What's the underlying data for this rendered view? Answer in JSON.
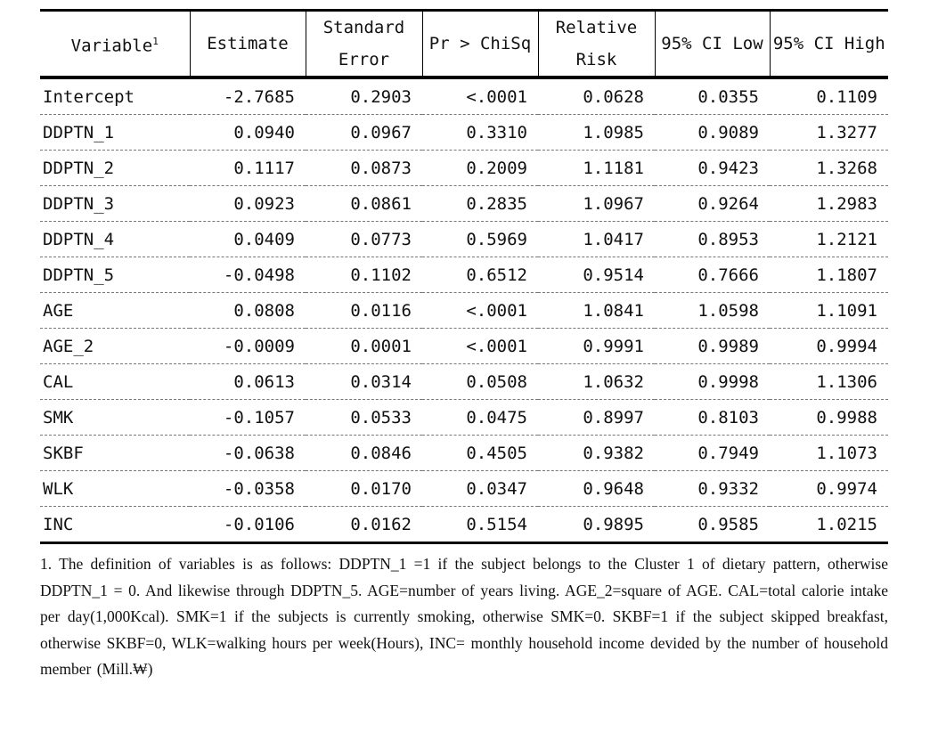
{
  "table": {
    "header": [
      "Variable",
      "Estimate",
      "Standard Error",
      "Pr > ChiSq",
      "Relative Risk",
      "95% CI Low",
      "95% CI High"
    ],
    "header_sup": "1",
    "rows": [
      [
        "Intercept",
        "-2.7685",
        "0.2903",
        "<.0001",
        "0.0628",
        "0.0355",
        "0.1109"
      ],
      [
        "DDPTN_1",
        "0.0940",
        "0.0967",
        "0.3310",
        "1.0985",
        "0.9089",
        "1.3277"
      ],
      [
        "DDPTN_2",
        "0.1117",
        "0.0873",
        "0.2009",
        "1.1181",
        "0.9423",
        "1.3268"
      ],
      [
        "DDPTN_3",
        "0.0923",
        "0.0861",
        "0.2835",
        "1.0967",
        "0.9264",
        "1.2983"
      ],
      [
        "DDPTN_4",
        "0.0409",
        "0.0773",
        "0.5969",
        "1.0417",
        "0.8953",
        "1.2121"
      ],
      [
        "DDPTN_5",
        "-0.0498",
        "0.1102",
        "0.6512",
        "0.9514",
        "0.7666",
        "1.1807"
      ],
      [
        "AGE",
        "0.0808",
        "0.0116",
        "<.0001",
        "1.0841",
        "1.0598",
        "1.1091"
      ],
      [
        "AGE_2",
        "-0.0009",
        "0.0001",
        "<.0001",
        "0.9991",
        "0.9989",
        "0.9994"
      ],
      [
        "CAL",
        "0.0613",
        "0.0314",
        "0.0508",
        "1.0632",
        "0.9998",
        "1.1306"
      ],
      [
        "SMK",
        "-0.1057",
        "0.0533",
        "0.0475",
        "0.8997",
        "0.8103",
        "0.9988"
      ],
      [
        "SKBF",
        "-0.0638",
        "0.0846",
        "0.4505",
        "0.9382",
        "0.7949",
        "1.1073"
      ],
      [
        "WLK",
        "-0.0358",
        "0.0170",
        "0.0347",
        "0.9648",
        "0.9332",
        "0.9974"
      ],
      [
        "INC",
        "-0.0106",
        "0.0162",
        "0.5154",
        "0.9895",
        "0.9585",
        "1.0215"
      ]
    ]
  },
  "footnote": "1. The definition of variables is as follows: DDPTN_1 =1 if the subject belongs to the Cluster 1 of dietary pattern, otherwise  DDPTN_1 = 0. And likewise through DDPTN_5. AGE=number of years living. AGE_2=square of AGE. CAL=total calorie intake per day(1,000Kcal). SMK=1 if the subjects is currently smoking, otherwise SMK=0. SKBF=1 if the subject skipped breakfast, otherwise SKBF=0, WLK=walking hours per week(Hours), INC= monthly household income devided by the number of household member (Mill.₩)"
}
